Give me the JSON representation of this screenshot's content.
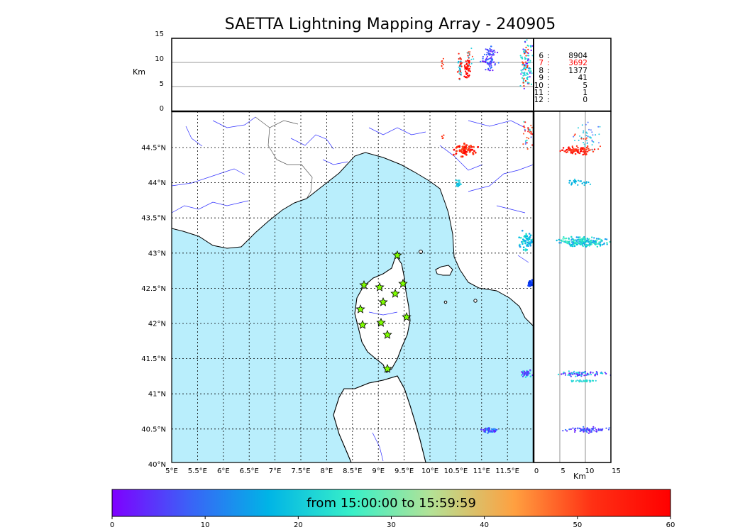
{
  "title": "SAETTA Lightning Mapping Array - 240905",
  "colorbar": {
    "label": "from 15:00:00 to 15:59:59",
    "ticks": [
      "0",
      "10",
      "20",
      "30",
      "40",
      "50",
      "60"
    ],
    "colors": [
      "#7f00ff",
      "#3a63f7",
      "#00b4e6",
      "#38f0c8",
      "#b3e296",
      "#ffa040",
      "#ff3014",
      "#ff0000"
    ]
  },
  "top_panel": {
    "ylabel": "Km",
    "yticks": [
      "15",
      "10",
      "5",
      "0"
    ]
  },
  "side_panel": {
    "xlabel": "Km",
    "xticks": [
      "0",
      "5",
      "10",
      "15"
    ]
  },
  "map": {
    "lon_ticks": [
      "5°E",
      "5.5°E",
      "6°E",
      "6.5°E",
      "7°E",
      "7.5°E",
      "8°E",
      "8.5°E",
      "9°E",
      "9.5°E",
      "10°E",
      "10.5°E",
      "11°E",
      "11.5°E"
    ],
    "lat_ticks": [
      "44.5°N",
      "44°N",
      "43.5°N",
      "43°N",
      "42.5°N",
      "42°N",
      "41.5°N",
      "41°N",
      "40.5°N",
      "40°N"
    ],
    "sea_color": "#b9eefc",
    "station_color": "#7fff00"
  },
  "stations": [
    {
      "n": "6",
      "count": "8904",
      "highlight": false
    },
    {
      "n": "7",
      "count": "3692",
      "highlight": true
    },
    {
      "n": "8",
      "count": "1377",
      "highlight": false
    },
    {
      "n": "9",
      "count": "41",
      "highlight": false
    },
    {
      "n": "10",
      "count": "5",
      "highlight": false
    },
    {
      "n": "11",
      "count": "1",
      "highlight": false
    },
    {
      "n": "12",
      "count": "0",
      "highlight": false
    }
  ]
}
